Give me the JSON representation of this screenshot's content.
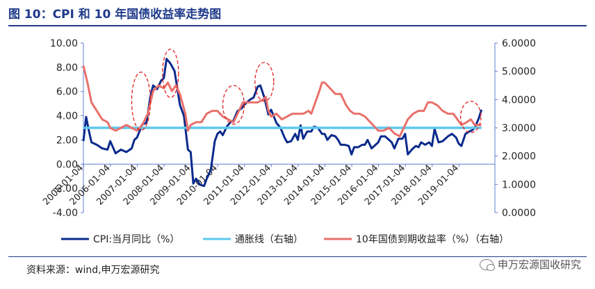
{
  "header": {
    "title": "图 10：CPI 和 10 年国债收益率走势图"
  },
  "footer": {
    "source": "资料来源：wind,申万宏源研究",
    "watermark": "申万宏源国收研究",
    "watermark_icon": "wechat-icon"
  },
  "colors": {
    "title": "#1f3a8a",
    "cpi": "#0a2a8c",
    "inflation": "#5ec8ee",
    "yield": "#e8706a",
    "circles": "#e02020",
    "axis": "#5b7fd0"
  },
  "chart_data": {
    "type": "line",
    "x_tick_labels": [
      "2005-01-04",
      "2006-01-04",
      "2007-01-04",
      "2008-01-04",
      "2009-01-04",
      "2010-01-04",
      "2011-01-04",
      "2012-01-04",
      "2013-01-04",
      "2014-01-04",
      "2015-01-04",
      "2016-01-04",
      "2017-01-04",
      "2018-01-04",
      "2019-01-04"
    ],
    "x_range": [
      2005.0,
      2020.35
    ],
    "y_left": {
      "range": [
        -4,
        10
      ],
      "ticks": [
        10.0,
        8.0,
        6.0,
        4.0,
        2.0,
        0.0,
        -2.0,
        -4.0
      ],
      "tick_labels": [
        "10.00",
        "8.00",
        "6.00",
        "4.00",
        "2.00",
        "0.00",
        "-2.00",
        "-4.00"
      ]
    },
    "y_right": {
      "range": [
        0,
        6
      ],
      "ticks": [
        6,
        5,
        4,
        3,
        2,
        1,
        0
      ],
      "tick_labels": [
        "6.0000",
        "5.0000",
        "4.0000",
        "3.0000",
        "2.0000",
        "1.0000",
        "0.0000"
      ]
    },
    "series": [
      {
        "name": "CPI:当月同比（%）",
        "axis": "left",
        "points": [
          [
            2005.0,
            1.9
          ],
          [
            2005.1,
            3.9
          ],
          [
            2005.2,
            2.8
          ],
          [
            2005.3,
            1.8
          ],
          [
            2005.5,
            1.6
          ],
          [
            2005.7,
            1.3
          ],
          [
            2005.9,
            1.2
          ],
          [
            2006.0,
            1.9
          ],
          [
            2006.2,
            0.9
          ],
          [
            2006.4,
            1.2
          ],
          [
            2006.6,
            1.0
          ],
          [
            2006.8,
            1.3
          ],
          [
            2006.9,
            2.0
          ],
          [
            2007.0,
            2.2
          ],
          [
            2007.2,
            3.3
          ],
          [
            2007.35,
            3.4
          ],
          [
            2007.5,
            5.6
          ],
          [
            2007.6,
            6.5
          ],
          [
            2007.75,
            6.2
          ],
          [
            2007.9,
            6.9
          ],
          [
            2008.0,
            7.1
          ],
          [
            2008.1,
            8.7
          ],
          [
            2008.25,
            8.3
          ],
          [
            2008.4,
            7.7
          ],
          [
            2008.5,
            6.3
          ],
          [
            2008.6,
            4.9
          ],
          [
            2008.75,
            4.0
          ],
          [
            2008.9,
            1.2
          ],
          [
            2009.0,
            1.0
          ],
          [
            2009.1,
            -1.6
          ],
          [
            2009.2,
            -1.2
          ],
          [
            2009.35,
            -1.7
          ],
          [
            2009.5,
            -1.8
          ],
          [
            2009.6,
            -1.2
          ],
          [
            2009.75,
            -0.5
          ],
          [
            2009.9,
            1.9
          ],
          [
            2010.0,
            2.5
          ],
          [
            2010.1,
            2.7
          ],
          [
            2010.2,
            2.4
          ],
          [
            2010.35,
            3.1
          ],
          [
            2010.5,
            3.5
          ],
          [
            2010.6,
            3.6
          ],
          [
            2010.75,
            4.4
          ],
          [
            2010.9,
            4.6
          ],
          [
            2011.0,
            4.9
          ],
          [
            2011.2,
            5.3
          ],
          [
            2011.35,
            5.5
          ],
          [
            2011.5,
            6.4
          ],
          [
            2011.6,
            6.5
          ],
          [
            2011.75,
            5.5
          ],
          [
            2011.9,
            4.1
          ],
          [
            2012.0,
            4.5
          ],
          [
            2012.2,
            3.4
          ],
          [
            2012.35,
            3.0
          ],
          [
            2012.5,
            2.2
          ],
          [
            2012.6,
            1.8
          ],
          [
            2012.75,
            1.9
          ],
          [
            2012.9,
            2.5
          ],
          [
            2013.0,
            2.0
          ],
          [
            2013.1,
            3.2
          ],
          [
            2013.2,
            2.1
          ],
          [
            2013.35,
            2.7
          ],
          [
            2013.5,
            2.7
          ],
          [
            2013.6,
            3.1
          ],
          [
            2013.75,
            3.0
          ],
          [
            2013.9,
            2.5
          ],
          [
            2014.0,
            2.5
          ],
          [
            2014.1,
            2.0
          ],
          [
            2014.25,
            2.4
          ],
          [
            2014.4,
            2.3
          ],
          [
            2014.5,
            2.0
          ],
          [
            2014.6,
            1.6
          ],
          [
            2014.75,
            1.6
          ],
          [
            2014.9,
            1.5
          ],
          [
            2015.0,
            0.8
          ],
          [
            2015.1,
            1.4
          ],
          [
            2015.25,
            1.4
          ],
          [
            2015.4,
            1.6
          ],
          [
            2015.5,
            1.6
          ],
          [
            2015.6,
            2.0
          ],
          [
            2015.75,
            1.3
          ],
          [
            2015.9,
            1.6
          ],
          [
            2016.0,
            1.8
          ],
          [
            2016.1,
            2.3
          ],
          [
            2016.25,
            2.3
          ],
          [
            2016.4,
            2.0
          ],
          [
            2016.5,
            1.8
          ],
          [
            2016.6,
            1.3
          ],
          [
            2016.75,
            2.1
          ],
          [
            2016.9,
            2.1
          ],
          [
            2017.0,
            2.5
          ],
          [
            2017.1,
            0.8
          ],
          [
            2017.25,
            1.2
          ],
          [
            2017.4,
            1.5
          ],
          [
            2017.5,
            1.4
          ],
          [
            2017.6,
            1.8
          ],
          [
            2017.75,
            1.6
          ],
          [
            2017.9,
            1.8
          ],
          [
            2018.0,
            1.5
          ],
          [
            2018.1,
            2.9
          ],
          [
            2018.25,
            1.8
          ],
          [
            2018.4,
            1.9
          ],
          [
            2018.5,
            2.1
          ],
          [
            2018.6,
            2.3
          ],
          [
            2018.75,
            2.5
          ],
          [
            2018.9,
            2.2
          ],
          [
            2019.0,
            1.7
          ],
          [
            2019.1,
            1.5
          ],
          [
            2019.25,
            2.5
          ],
          [
            2019.4,
            2.7
          ],
          [
            2019.5,
            2.8
          ],
          [
            2019.6,
            3.0
          ],
          [
            2019.75,
            3.8
          ],
          [
            2019.85,
            4.5
          ]
        ]
      },
      {
        "name": "通胀线（右轴）",
        "axis": "right",
        "points": [
          [
            2005.0,
            3.0
          ],
          [
            2019.85,
            3.0
          ]
        ]
      },
      {
        "name": "10年国债到期收益率（%）（右轴）",
        "axis": "right",
        "points": [
          [
            2005.0,
            5.2
          ],
          [
            2005.15,
            4.6
          ],
          [
            2005.3,
            3.9
          ],
          [
            2005.5,
            3.6
          ],
          [
            2005.7,
            3.3
          ],
          [
            2005.9,
            3.2
          ],
          [
            2006.0,
            3.0
          ],
          [
            2006.2,
            2.9
          ],
          [
            2006.4,
            3.0
          ],
          [
            2006.6,
            3.1
          ],
          [
            2006.8,
            3.0
          ],
          [
            2007.0,
            2.9
          ],
          [
            2007.2,
            3.1
          ],
          [
            2007.4,
            3.5
          ],
          [
            2007.6,
            4.3
          ],
          [
            2007.8,
            4.5
          ],
          [
            2008.0,
            4.4
          ],
          [
            2008.15,
            4.6
          ],
          [
            2008.3,
            4.3
          ],
          [
            2008.45,
            4.5
          ],
          [
            2008.6,
            4.2
          ],
          [
            2008.8,
            3.5
          ],
          [
            2008.9,
            2.9
          ],
          [
            2009.0,
            3.1
          ],
          [
            2009.2,
            3.2
          ],
          [
            2009.4,
            3.2
          ],
          [
            2009.6,
            3.5
          ],
          [
            2009.8,
            3.6
          ],
          [
            2009.9,
            3.6
          ],
          [
            2010.0,
            3.6
          ],
          [
            2010.2,
            3.4
          ],
          [
            2010.4,
            3.3
          ],
          [
            2010.6,
            3.2
          ],
          [
            2010.8,
            3.6
          ],
          [
            2010.95,
            3.9
          ],
          [
            2011.1,
            3.9
          ],
          [
            2011.3,
            3.9
          ],
          [
            2011.5,
            3.9
          ],
          [
            2011.7,
            4.0
          ],
          [
            2011.8,
            4.1
          ],
          [
            2011.9,
            3.6
          ],
          [
            2012.0,
            3.4
          ],
          [
            2012.2,
            3.5
          ],
          [
            2012.4,
            3.3
          ],
          [
            2012.6,
            3.4
          ],
          [
            2012.8,
            3.5
          ],
          [
            2013.0,
            3.5
          ],
          [
            2013.2,
            3.5
          ],
          [
            2013.4,
            3.6
          ],
          [
            2013.5,
            3.5
          ],
          [
            2013.65,
            3.9
          ],
          [
            2013.8,
            4.3
          ],
          [
            2013.9,
            4.6
          ],
          [
            2014.0,
            4.6
          ],
          [
            2014.2,
            4.4
          ],
          [
            2014.4,
            4.2
          ],
          [
            2014.6,
            4.2
          ],
          [
            2014.8,
            3.8
          ],
          [
            2014.95,
            3.6
          ],
          [
            2015.1,
            3.5
          ],
          [
            2015.3,
            3.5
          ],
          [
            2015.5,
            3.4
          ],
          [
            2015.7,
            3.2
          ],
          [
            2015.9,
            3.0
          ],
          [
            2016.0,
            2.9
          ],
          [
            2016.2,
            2.9
          ],
          [
            2016.4,
            3.0
          ],
          [
            2016.6,
            2.8
          ],
          [
            2016.8,
            2.7
          ],
          [
            2016.95,
            3.0
          ],
          [
            2017.1,
            3.3
          ],
          [
            2017.3,
            3.5
          ],
          [
            2017.5,
            3.6
          ],
          [
            2017.7,
            3.6
          ],
          [
            2017.85,
            3.9
          ],
          [
            2018.0,
            3.9
          ],
          [
            2018.2,
            3.8
          ],
          [
            2018.4,
            3.6
          ],
          [
            2018.6,
            3.5
          ],
          [
            2018.8,
            3.5
          ],
          [
            2018.95,
            3.3
          ],
          [
            2019.1,
            3.1
          ],
          [
            2019.3,
            3.2
          ],
          [
            2019.45,
            3.3
          ],
          [
            2019.6,
            3.1
          ],
          [
            2019.75,
            3.1
          ],
          [
            2019.85,
            3.1
          ]
        ]
      }
    ],
    "annotations": {
      "dashed_ellipses": [
        {
          "center": [
            2007.15,
            5.2
          ],
          "radius_years": 0.35,
          "radius_units": 2.4
        },
        {
          "center": [
            2008.25,
            7.5
          ],
          "radius_years": 0.3,
          "radius_units": 2.0
        },
        {
          "center": [
            2010.6,
            4.9
          ],
          "radius_years": 0.4,
          "radius_units": 1.6
        },
        {
          "center": [
            2011.75,
            6.8
          ],
          "radius_years": 0.35,
          "radius_units": 1.6
        },
        {
          "center": [
            2019.45,
            3.9
          ],
          "radius_years": 0.38,
          "radius_units": 1.3
        }
      ]
    },
    "grid": false,
    "legend_placement": "bottom"
  }
}
